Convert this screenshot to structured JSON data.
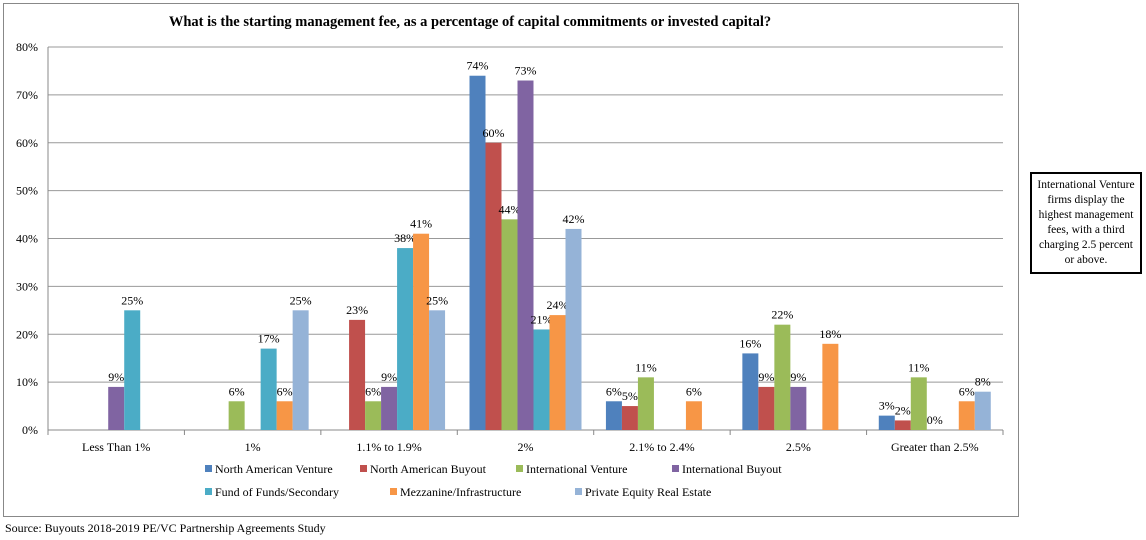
{
  "chart_data": {
    "type": "bar",
    "title": "What is the starting management fee, as a percentage of capital commitments or invested capital?",
    "xlabel": "",
    "ylabel": "",
    "ylim": [
      0,
      80
    ],
    "yticks": [
      "0%",
      "10%",
      "20%",
      "30%",
      "40%",
      "50%",
      "60%",
      "70%",
      "80%"
    ],
    "grid": true,
    "legend_position": "bottom",
    "categories": [
      "Less Than 1%",
      "1%",
      "1.1% to 1.9%",
      "2%",
      "2.1% to 2.4%",
      "2.5%",
      "Greater than 2.5%"
    ],
    "series": [
      {
        "name": "North American Venture",
        "color": "#4F81BD",
        "values": [
          null,
          null,
          null,
          74,
          6,
          16,
          3
        ]
      },
      {
        "name": "North American Buyout",
        "color": "#C0504D",
        "values": [
          null,
          null,
          23,
          60,
          5,
          9,
          2
        ]
      },
      {
        "name": "International Venture",
        "color": "#9BBB59",
        "values": [
          null,
          6,
          6,
          44,
          11,
          22,
          11
        ]
      },
      {
        "name": "International Buyout",
        "color": "#8064A2",
        "values": [
          9,
          null,
          9,
          73,
          null,
          9,
          0
        ]
      },
      {
        "name": "Fund of Funds/Secondary",
        "color": "#4BACC6",
        "values": [
          25,
          17,
          38,
          21,
          null,
          null,
          null
        ]
      },
      {
        "name": "Mezzanine/Infrastructure",
        "color": "#F79646",
        "values": [
          null,
          6,
          41,
          24,
          6,
          18,
          6
        ]
      },
      {
        "name": "Private Equity Real Estate",
        "color": "#95B3D7",
        "values": [
          null,
          25,
          25,
          42,
          null,
          null,
          8
        ]
      }
    ]
  },
  "callout": "International Venture firms display the highest management fees, with a third charging 2.5 percent or above.",
  "source": "Source: Buyouts 2018-2019 PE/VC Partnership Agreements Study"
}
